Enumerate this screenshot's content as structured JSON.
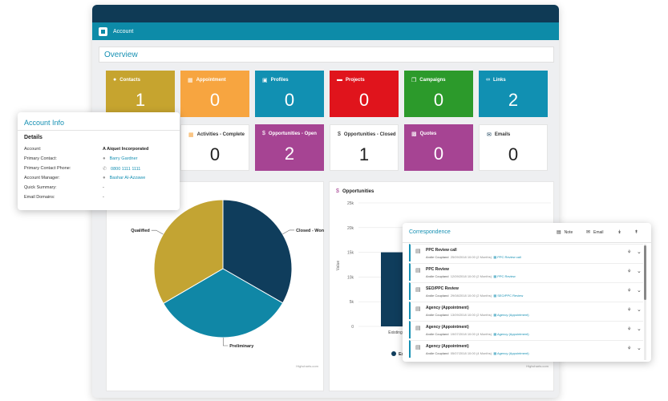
{
  "app": {
    "subbar_label": "Account",
    "overview_title": "Overview"
  },
  "tiles": [
    {
      "label": "Contacts",
      "value": "1",
      "icon": "person-icon",
      "color": "#c6a42f"
    },
    {
      "label": "Appointment",
      "value": "0",
      "icon": "calendar-icon",
      "color": "#f7a540"
    },
    {
      "label": "Profiles",
      "value": "0",
      "icon": "briefcase-icon",
      "color": "#1190b2"
    },
    {
      "label": "Projects",
      "value": "0",
      "icon": "folder-icon",
      "color": "#e0141c"
    },
    {
      "label": "Campaigns",
      "value": "0",
      "icon": "copy-icon",
      "color": "#2c9a2b"
    },
    {
      "label": "Links",
      "value": "2",
      "icon": "link-icon",
      "color": "#1190b2"
    },
    {
      "label": "Activities - Complete",
      "value": "0",
      "icon": "calendar-icon",
      "color": "#ffffff"
    },
    {
      "label": "Opportunities - Open",
      "value": "2",
      "icon": "dollar-icon",
      "color": "#a64493"
    },
    {
      "label": "Opportunities - Closed",
      "value": "1",
      "icon": "dollar-icon",
      "color": "#ffffff"
    },
    {
      "label": "Quotes",
      "value": "0",
      "icon": "calculator-icon",
      "color": "#a64493"
    },
    {
      "label": "Emails",
      "value": "0",
      "icon": "envelope-icon",
      "color": "#ffffff"
    }
  ],
  "pie_chart": {
    "credits": "Highcharts.com",
    "chart_data": {
      "type": "pie",
      "slices": [
        {
          "name": "Closed - Won",
          "value": 33.3,
          "color": "#0f3d5c"
        },
        {
          "name": "Preliminary",
          "value": 33.3,
          "color": "#1087a6"
        },
        {
          "name": "Qualified",
          "value": 33.4,
          "color": "#c3a433"
        }
      ]
    }
  },
  "bar_chart": {
    "title": "Opportunities",
    "credits": "Highcharts.com",
    "chart_data": {
      "type": "bar",
      "categories": [
        "Existing"
      ],
      "values": [
        15000
      ],
      "ylabel": "Value",
      "ylim": [
        0,
        25000
      ],
      "y_ticks": [
        "0",
        "5k",
        "10k",
        "15k",
        "20k",
        "25k"
      ],
      "color": "#0f3d5c",
      "legend_text": "Ex"
    }
  },
  "account_info": {
    "title": "Account Info",
    "section": "Details",
    "rows": [
      {
        "label": "Account:",
        "value": "A Aiquet Incorporated"
      },
      {
        "label": "Primary Contact:",
        "value": "Barry Gardner",
        "icon": "person-icon"
      },
      {
        "label": "Primary Contact Phone:",
        "value": "0800 1111 1111",
        "icon": "phone-icon"
      },
      {
        "label": "Account Manager:",
        "value": "Bashar Al-Azzawe",
        "icon": "person-icon"
      },
      {
        "label": "Quick Summary:",
        "value": "-"
      },
      {
        "label": "Email Domains:",
        "value": "-"
      }
    ]
  },
  "correspondence": {
    "title": "Correspondence",
    "note_label": "Note",
    "email_label": "Email",
    "items": [
      {
        "title": "PPC Review call",
        "author": "Andie Coupland",
        "date": "25/09/2018 10:00 (2 Months)",
        "link": "PPC Review call"
      },
      {
        "title": "PPC Review",
        "author": "Andie Coupland",
        "date": "12/09/2018 10:00 (2 Months)",
        "link": "PPC Review"
      },
      {
        "title": "SEO/PPC Review",
        "author": "Andie Coupland",
        "date": "29/08/2018 10:00 (2 Months)",
        "link": "SEO/PPC Review"
      },
      {
        "title": "Agency (Appointment)",
        "author": "Andie Coupland",
        "date": "13/09/2018 10:00 (2 Months)",
        "link": "Agency (Appointment)"
      },
      {
        "title": "Agency (Appointment)",
        "author": "Andie Coupland",
        "date": "19/07/2018 10:00 (4 Months)",
        "link": "Agency (Appointment)"
      },
      {
        "title": "Agency (Appointment)",
        "author": "Andie Coupland",
        "date": "05/07/2018 10:00 (4 Months)",
        "link": "Agency (Appointment)"
      }
    ]
  }
}
